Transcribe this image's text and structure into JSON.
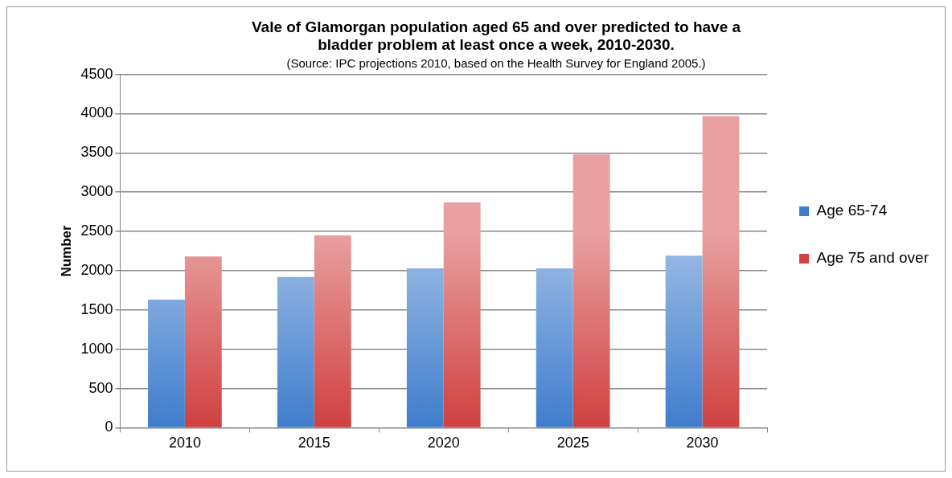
{
  "chart_data": {
    "type": "bar",
    "title": "Vale of Glamorgan population aged 65 and over predicted to have a bladder problem at least once a week, 2010-2030.",
    "annotations": [
      "(Source: IPC projections 2010, based on the Health Survey for England 2005.)"
    ],
    "ylabel": "Number",
    "categories": [
      "2010",
      "2015",
      "2020",
      "2025",
      "2030"
    ],
    "series": [
      {
        "name": "Age 65-74",
        "color": "#3f7dcc",
        "values": [
          1630,
          1920,
          2030,
          2030,
          2190
        ]
      },
      {
        "name": "Age 75 and over",
        "color": "#d04040",
        "values": [
          2180,
          2450,
          2870,
          3480,
          3970
        ]
      }
    ],
    "ylim": [
      0,
      4500
    ],
    "yticks": [
      0,
      500,
      1000,
      1500,
      2000,
      2500,
      3000,
      3500,
      4000,
      4500
    ],
    "grid": "y",
    "legend": "right"
  }
}
